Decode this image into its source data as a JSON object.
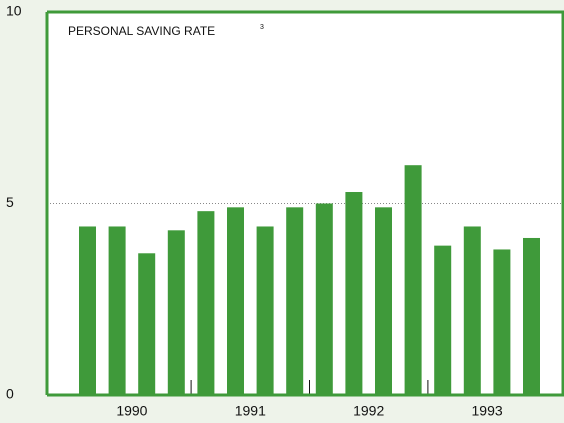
{
  "chart_data": {
    "type": "bar",
    "title": "PERSONAL SAVING RATE",
    "title_footnote": "3",
    "x_labels": [
      "1990",
      "1991",
      "1992",
      "1993"
    ],
    "values": [
      4.4,
      4.4,
      3.7,
      4.3,
      4.8,
      4.9,
      4.4,
      4.9,
      5.0,
      5.3,
      4.9,
      6.0,
      3.9,
      4.4,
      3.8,
      4.1
    ],
    "color": "#3f9a3a",
    "ylim": [
      0,
      10
    ],
    "yticks": [
      0,
      5,
      10
    ],
    "grid": true
  }
}
